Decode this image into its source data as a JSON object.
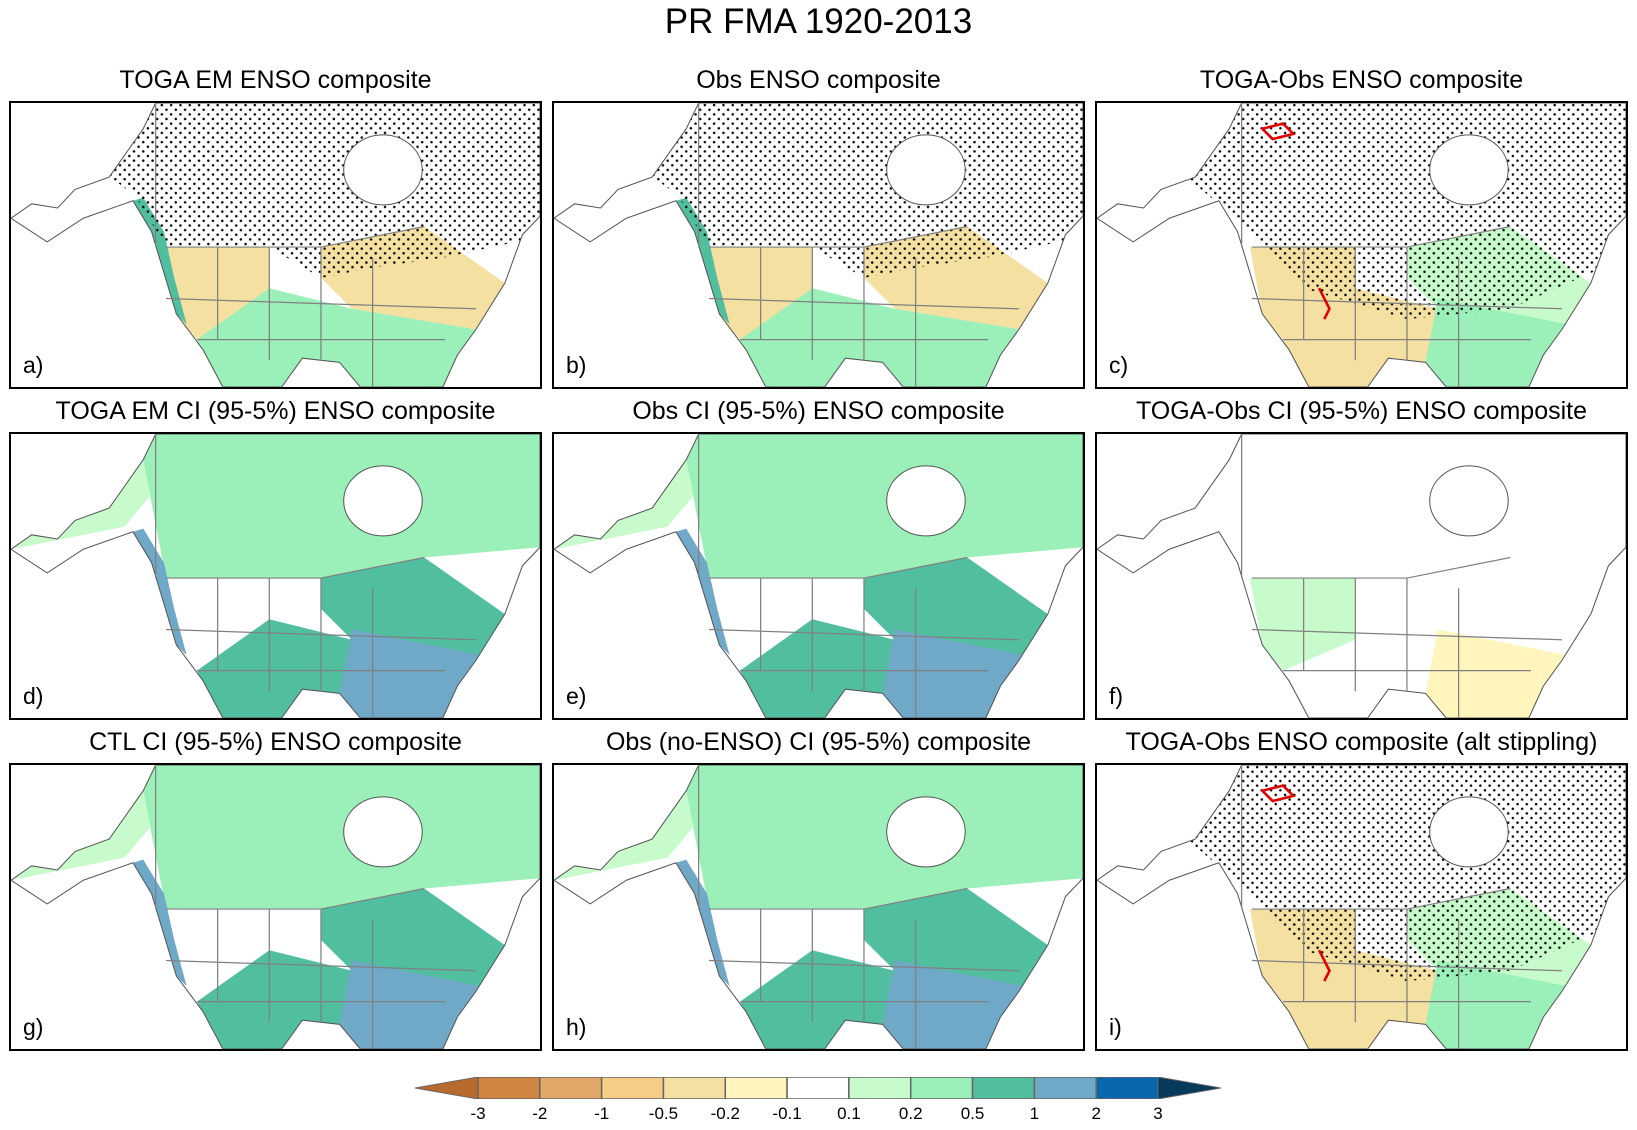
{
  "title": "PR FMA 1920-2013",
  "panels": [
    {
      "id": "a",
      "title": "TOGA EM ENSO composite",
      "label": "a)",
      "type": "composite"
    },
    {
      "id": "b",
      "title": "Obs ENSO composite",
      "label": "b)",
      "type": "composite"
    },
    {
      "id": "c",
      "title": "TOGA-Obs ENSO composite",
      "label": "c)",
      "type": "diff"
    },
    {
      "id": "d",
      "title": "TOGA EM CI (95-5%) ENSO composite",
      "label": "d)",
      "type": "ci"
    },
    {
      "id": "e",
      "title": "Obs CI (95-5%) ENSO composite",
      "label": "e)",
      "type": "ci"
    },
    {
      "id": "f",
      "title": "TOGA-Obs CI (95-5%) ENSO composite",
      "label": "f)",
      "type": "cidiff"
    },
    {
      "id": "g",
      "title": "CTL CI (95-5%) ENSO composite",
      "label": "g)",
      "type": "ci"
    },
    {
      "id": "h",
      "title": "Obs (no-ENSO) CI (95-5%) composite",
      "label": "h)",
      "type": "ci"
    },
    {
      "id": "i",
      "title": "TOGA-Obs ENSO composite (alt stippling)",
      "label": "i)",
      "type": "diff"
    }
  ],
  "colorbar": {
    "levels": [
      "-3",
      "-2",
      "-1",
      "-0.5",
      "-0.2",
      "-0.1",
      "0.1",
      "0.2",
      "0.5",
      "1",
      "2",
      "3"
    ],
    "colors": [
      "#b86a2a",
      "#cf853f",
      "#e2a868",
      "#f5cd85",
      "#f4e0a0",
      "#fff5bd",
      "#ffffff",
      "#c8fbcb",
      "#9af0b8",
      "#52bea0",
      "#70a8c8",
      "#0769ac",
      "#053a5a"
    ]
  },
  "contour_color_significant": "#e00000",
  "border_color": "#808080"
}
